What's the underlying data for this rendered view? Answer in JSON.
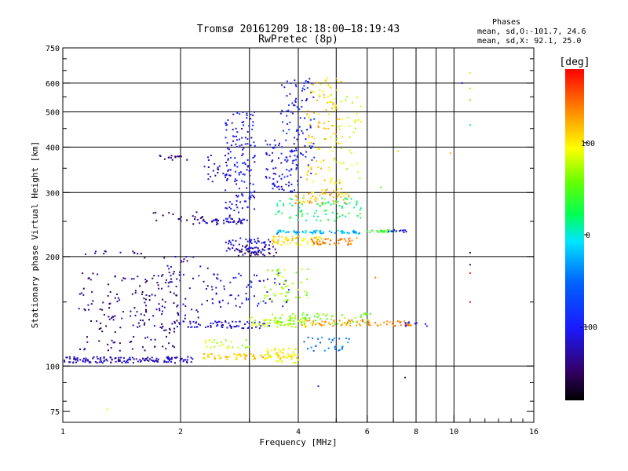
{
  "chart_data": {
    "type": "scatter",
    "title": "Tromsø 20161209 18:18:00–18:19:43",
    "subtitle": "RwPretec (8p)",
    "xlabel": "Frequency [MHz]",
    "ylabel": "Stationary phase Virtual Height [km]",
    "xscale": "log",
    "yscale": "log",
    "xlim": [
      1,
      16
    ],
    "ylim": [
      70,
      750
    ],
    "x_ticks": [
      1,
      2,
      4,
      6,
      8,
      10,
      16
    ],
    "x_tick_labels": [
      "1",
      "2",
      "4",
      "6",
      "8",
      "10",
      "16"
    ],
    "x_minor_ticks": [
      3,
      5,
      7,
      9,
      11,
      12,
      13,
      14,
      15
    ],
    "x_gridlines": [
      2,
      3,
      4,
      5,
      6,
      7,
      8,
      9,
      10
    ],
    "y_ticks": [
      75,
      100,
      200,
      300,
      400,
      500,
      600,
      750
    ],
    "y_tick_labels": [
      "75",
      "100",
      "200",
      "300",
      "400",
      "500",
      "600",
      "750"
    ],
    "y_minor_ticks": [
      80,
      90,
      150,
      250,
      350,
      450,
      550,
      650,
      700
    ],
    "y_gridlines": [
      100,
      200,
      300,
      400,
      500,
      600
    ],
    "grid": true,
    "colorbar": {
      "label": "[deg]",
      "range": [
        -180,
        180
      ],
      "ticks": [
        100,
        0,
        -100
      ],
      "tick_labels": [
        "100",
        "0",
        "-100"
      ]
    },
    "annotation": {
      "title": "Phases",
      "line1": "mean, sd,O:-101.7, 24.6",
      "line2": "mean, sd,X:  92.1, 25.0"
    },
    "traces": [
      {
        "fmin": 1.0,
        "fmax": 2.15,
        "hmin": 102,
        "hmax": 106,
        "phase": -120,
        "n": 150
      },
      {
        "fmin": 2.25,
        "fmax": 3.4,
        "hmin": 104,
        "hmax": 108,
        "phase": 110,
        "n": 60
      },
      {
        "fmin": 3.3,
        "fmax": 4.0,
        "hmin": 102,
        "hmax": 112,
        "phase": 95,
        "n": 55
      },
      {
        "fmin": 4.1,
        "fmax": 5.4,
        "hmin": 110,
        "hmax": 120,
        "phase": -45,
        "n": 30
      },
      {
        "fmin": 2.3,
        "fmax": 3.0,
        "hmin": 112,
        "hmax": 118,
        "phase": 75,
        "n": 25
      },
      {
        "fmin": 1.1,
        "fmax": 2.0,
        "hmin": 110,
        "hmax": 180,
        "phase": -140,
        "n": 160
      },
      {
        "fmin": 1.6,
        "fmax": 2.6,
        "hmin": 125,
        "hmax": 200,
        "phase": -125,
        "n": 70
      },
      {
        "fmin": 1.9,
        "fmax": 3.4,
        "hmin": 127,
        "hmax": 133,
        "phase": -115,
        "n": 70
      },
      {
        "fmin": 3.0,
        "fmax": 4.2,
        "hmin": 128,
        "hmax": 136,
        "phase": 80,
        "n": 60
      },
      {
        "fmin": 3.4,
        "fmax": 6.2,
        "hmin": 130,
        "hmax": 140,
        "phase": 60,
        "n": 70
      },
      {
        "fmin": 4.0,
        "fmax": 5.9,
        "hmin": 128,
        "hmax": 134,
        "phase": 130,
        "n": 40
      },
      {
        "fmin": 6.0,
        "fmax": 7.8,
        "hmin": 129,
        "hmax": 133,
        "phase": 140,
        "n": 35
      },
      {
        "fmin": 7.5,
        "fmax": 8.6,
        "hmin": 128,
        "hmax": 132,
        "phase": -100,
        "n": 10
      },
      {
        "fmin": 2.4,
        "fmax": 3.8,
        "hmin": 145,
        "hmax": 180,
        "phase": -110,
        "n": 60
      },
      {
        "fmin": 3.2,
        "fmax": 4.3,
        "hmin": 150,
        "hmax": 185,
        "phase": 70,
        "n": 50
      },
      {
        "fmin": 2.6,
        "fmax": 3.4,
        "hmin": 205,
        "hmax": 225,
        "phase": -110,
        "n": 60
      },
      {
        "fmin": 2.8,
        "fmax": 3.6,
        "hmin": 200,
        "hmax": 215,
        "phase": -140,
        "n": 40
      },
      {
        "fmin": 3.4,
        "fmax": 4.6,
        "hmin": 215,
        "hmax": 228,
        "phase": 110,
        "n": 60
      },
      {
        "fmin": 4.3,
        "fmax": 5.7,
        "hmin": 215,
        "hmax": 225,
        "phase": 140,
        "n": 40
      },
      {
        "fmin": 3.5,
        "fmax": 5.8,
        "hmin": 231,
        "hmax": 236,
        "phase": -20,
        "n": 70
      },
      {
        "fmin": 6.0,
        "fmax": 7.2,
        "hmin": 233,
        "hmax": 237,
        "phase": 45,
        "n": 25
      },
      {
        "fmin": 6.8,
        "fmax": 7.6,
        "hmin": 233,
        "hmax": 237,
        "phase": -110,
        "n": 15
      },
      {
        "fmin": 2.2,
        "fmax": 2.9,
        "hmin": 245,
        "hmax": 255,
        "phase": -120,
        "n": 40
      },
      {
        "fmin": 1.7,
        "fmax": 2.3,
        "hmin": 245,
        "hmax": 265,
        "phase": -150,
        "n": 20
      },
      {
        "fmin": 3.5,
        "fmax": 5.8,
        "hmin": 250,
        "hmax": 290,
        "phase": 20,
        "n": 80
      },
      {
        "fmin": 3.9,
        "fmax": 5.4,
        "hmin": 280,
        "hmax": 300,
        "phase": 120,
        "n": 50
      },
      {
        "fmin": 2.6,
        "fmax": 3.1,
        "hmin": 250,
        "hmax": 500,
        "phase": -105,
        "n": 150
      },
      {
        "fmin": 2.3,
        "fmax": 2.7,
        "hmin": 320,
        "hmax": 380,
        "phase": -120,
        "n": 25
      },
      {
        "fmin": 3.3,
        "fmax": 4.0,
        "hmin": 300,
        "hmax": 420,
        "phase": -110,
        "n": 70
      },
      {
        "fmin": 3.6,
        "fmax": 4.4,
        "hmin": 330,
        "hmax": 620,
        "phase": -95,
        "n": 100
      },
      {
        "fmin": 4.2,
        "fmax": 5.2,
        "hmin": 300,
        "hmax": 620,
        "phase": 110,
        "n": 110
      },
      {
        "fmin": 4.8,
        "fmax": 5.8,
        "hmin": 320,
        "hmax": 560,
        "phase": 85,
        "n": 40
      },
      {
        "fmin": 1.75,
        "fmax": 2.15,
        "hmin": 368,
        "hmax": 380,
        "phase": -145,
        "n": 15
      },
      {
        "fmin": 1.1,
        "fmax": 1.6,
        "hmin": 203,
        "hmax": 207,
        "phase": -130,
        "n": 12
      }
    ],
    "points": [
      {
        "f": 11.0,
        "h": 640,
        "phase": 100
      },
      {
        "f": 11.0,
        "h": 580,
        "phase": 110
      },
      {
        "f": 11.0,
        "h": 540,
        "phase": 60
      },
      {
        "f": 11.0,
        "h": 460,
        "phase": -10
      },
      {
        "f": 10.5,
        "h": 600,
        "phase": -100
      },
      {
        "f": 11.0,
        "h": 205,
        "phase": -150
      },
      {
        "f": 11.0,
        "h": 190,
        "phase": -130
      },
      {
        "f": 11.0,
        "h": 180,
        "phase": 170
      },
      {
        "f": 11.0,
        "h": 150,
        "phase": 175
      },
      {
        "f": 7.5,
        "h": 93,
        "phase": -150
      },
      {
        "f": 4.5,
        "h": 88,
        "phase": -100
      },
      {
        "f": 1.3,
        "h": 76,
        "phase": 100
      },
      {
        "f": 9.8,
        "h": 385,
        "phase": 120
      },
      {
        "f": 7.2,
        "h": 390,
        "phase": 110
      },
      {
        "f": 6.5,
        "h": 310,
        "phase": 50
      },
      {
        "f": 6.3,
        "h": 175,
        "phase": 140
      },
      {
        "f": 5.5,
        "h": 530,
        "phase": 110
      }
    ]
  }
}
